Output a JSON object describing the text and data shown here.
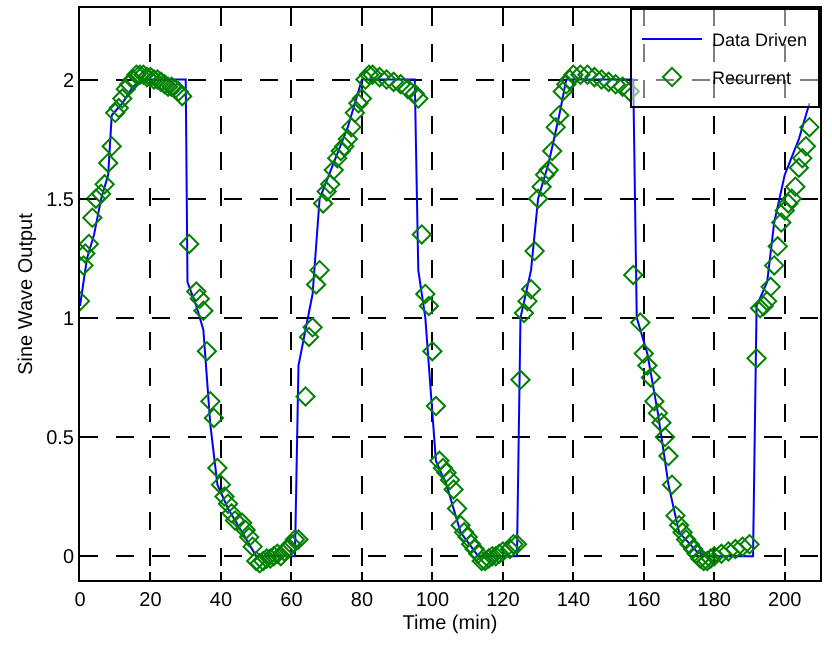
{
  "chart_data": {
    "type": "line",
    "xlabel": "Time (min)",
    "ylabel": "Sine Wave Output",
    "xlim": [
      0,
      210
    ],
    "ylim": [
      -0.1,
      2.3
    ],
    "xticks": [
      0,
      20,
      40,
      60,
      80,
      100,
      120,
      140,
      160,
      180,
      200
    ],
    "yticks": [
      0,
      0.5,
      1,
      1.5,
      2
    ],
    "grid": true,
    "legend": "top right",
    "series": [
      {
        "name": "Data Driven",
        "color": "#0000ff",
        "marker": "none",
        "line_style": "solid",
        "x": [
          0,
          2,
          4,
          6,
          8,
          9,
          12,
          15,
          18,
          20,
          25,
          30,
          30.5,
          33,
          35,
          37,
          39,
          42,
          46,
          50,
          55,
          61,
          62,
          64,
          66,
          68,
          72,
          76,
          79,
          80,
          90,
          95,
          96,
          98,
          100,
          101,
          104,
          108,
          113,
          118,
          124,
          125,
          128,
          130,
          133,
          136,
          138,
          150,
          157,
          158,
          161,
          164,
          167,
          170,
          175,
          178,
          185,
          191,
          192,
          195,
          197,
          200,
          204,
          207
        ],
        "values": [
          1.05,
          1.25,
          1.35,
          1.5,
          1.6,
          1.85,
          1.9,
          1.97,
          2.0,
          2.0,
          2.0,
          2.0,
          1.15,
          1.05,
          0.95,
          0.55,
          0.3,
          0.2,
          0.1,
          0.0,
          0.0,
          0.0,
          0.8,
          0.95,
          1.1,
          1.5,
          1.65,
          1.8,
          1.95,
          2.0,
          2.0,
          2.0,
          1.2,
          1.0,
          0.6,
          0.4,
          0.3,
          0.1,
          0.0,
          0.0,
          0.0,
          1.0,
          1.2,
          1.5,
          1.65,
          1.85,
          2.0,
          2.0,
          2.0,
          1.0,
          0.85,
          0.6,
          0.3,
          0.1,
          0.02,
          0.0,
          0.0,
          0.0,
          1.05,
          1.15,
          1.4,
          1.6,
          1.75,
          1.9
        ]
      },
      {
        "name": "Recurrent",
        "type": "scatter",
        "color": "#008000",
        "marker": "diamond",
        "x": [
          0,
          1,
          1.5,
          2.5,
          3.5,
          4.5,
          6,
          7,
          8,
          9,
          10,
          11,
          12,
          13,
          14,
          15,
          16,
          17,
          18,
          19,
          20,
          21,
          22,
          23,
          24,
          25,
          26,
          27,
          28,
          29,
          31,
          33,
          34,
          35,
          36,
          37,
          38,
          39,
          40,
          41,
          42,
          43,
          44,
          46,
          47,
          48,
          49,
          50,
          51,
          52,
          53,
          54,
          55,
          56,
          57,
          58,
          59,
          60,
          61,
          62,
          64,
          65,
          66,
          67,
          68,
          69,
          70,
          71,
          72,
          73,
          74,
          75,
          76,
          77,
          78,
          79,
          80,
          81,
          82,
          83,
          85,
          87,
          89,
          91,
          93,
          95,
          96,
          97,
          98,
          99,
          100,
          101,
          102,
          103,
          104,
          105,
          106,
          107,
          108,
          109,
          110,
          111,
          112,
          113,
          114,
          115,
          116,
          117,
          118,
          119,
          120,
          122,
          123,
          124,
          125,
          126,
          127,
          128,
          129,
          130,
          131,
          132,
          133,
          134,
          135,
          136,
          137,
          138,
          139,
          140,
          142,
          144,
          146,
          148,
          150,
          152,
          154,
          156,
          157,
          159,
          160,
          161,
          162,
          163,
          164,
          165,
          166,
          167,
          168,
          169,
          170,
          171,
          172,
          173,
          174,
          175,
          176,
          177,
          178,
          179,
          180,
          182,
          184,
          186,
          188,
          190,
          192,
          193,
          194,
          195,
          196,
          197,
          198,
          199,
          200,
          201,
          202,
          203,
          204,
          205,
          206,
          207
        ],
        "values": [
          1.07,
          1.22,
          1.27,
          1.31,
          1.42,
          1.5,
          1.52,
          1.56,
          1.65,
          1.72,
          1.86,
          1.88,
          1.92,
          1.96,
          1.98,
          2.0,
          2.02,
          2.02,
          2.02,
          2.01,
          2.01,
          2.0,
          2.0,
          1.99,
          1.98,
          1.97,
          1.97,
          1.96,
          1.95,
          1.93,
          1.31,
          1.11,
          1.08,
          1.03,
          0.86,
          0.65,
          0.58,
          0.37,
          0.3,
          0.25,
          0.22,
          0.18,
          0.15,
          0.14,
          0.11,
          0.08,
          0.04,
          -0.02,
          -0.03,
          -0.02,
          -0.01,
          -0.01,
          0.0,
          0.01,
          0.0,
          0.02,
          0.03,
          0.05,
          0.07,
          0.07,
          0.67,
          0.92,
          0.96,
          1.14,
          1.2,
          1.48,
          1.53,
          1.56,
          1.62,
          1.67,
          1.7,
          1.72,
          1.75,
          1.8,
          1.86,
          1.9,
          1.92,
          2.0,
          2.02,
          2.02,
          2.01,
          2.0,
          1.99,
          1.98,
          1.96,
          1.94,
          1.92,
          1.35,
          1.1,
          1.05,
          0.86,
          0.63,
          0.4,
          0.37,
          0.35,
          0.32,
          0.28,
          0.2,
          0.13,
          0.1,
          0.08,
          0.05,
          0.03,
          0.01,
          -0.02,
          -0.02,
          -0.01,
          0.0,
          0.0,
          0.01,
          0.02,
          0.03,
          0.05,
          0.05,
          0.74,
          1.02,
          1.07,
          1.12,
          1.28,
          1.5,
          1.55,
          1.6,
          1.62,
          1.7,
          1.8,
          1.85,
          1.95,
          1.98,
          2.0,
          2.02,
          2.02,
          2.02,
          2.01,
          2.0,
          1.99,
          1.98,
          1.97,
          1.95,
          1.18,
          0.98,
          0.85,
          0.8,
          0.75,
          0.65,
          0.6,
          0.56,
          0.5,
          0.42,
          0.3,
          0.17,
          0.13,
          0.1,
          0.07,
          0.05,
          0.03,
          0.01,
          -0.01,
          -0.02,
          -0.02,
          -0.01,
          0.0,
          0.01,
          0.02,
          0.03,
          0.04,
          0.05,
          0.83,
          1.04,
          1.05,
          1.07,
          1.13,
          1.22,
          1.3,
          1.4,
          1.45,
          1.48,
          1.5,
          1.55,
          1.63,
          1.67,
          1.72,
          1.8
        ]
      }
    ]
  }
}
